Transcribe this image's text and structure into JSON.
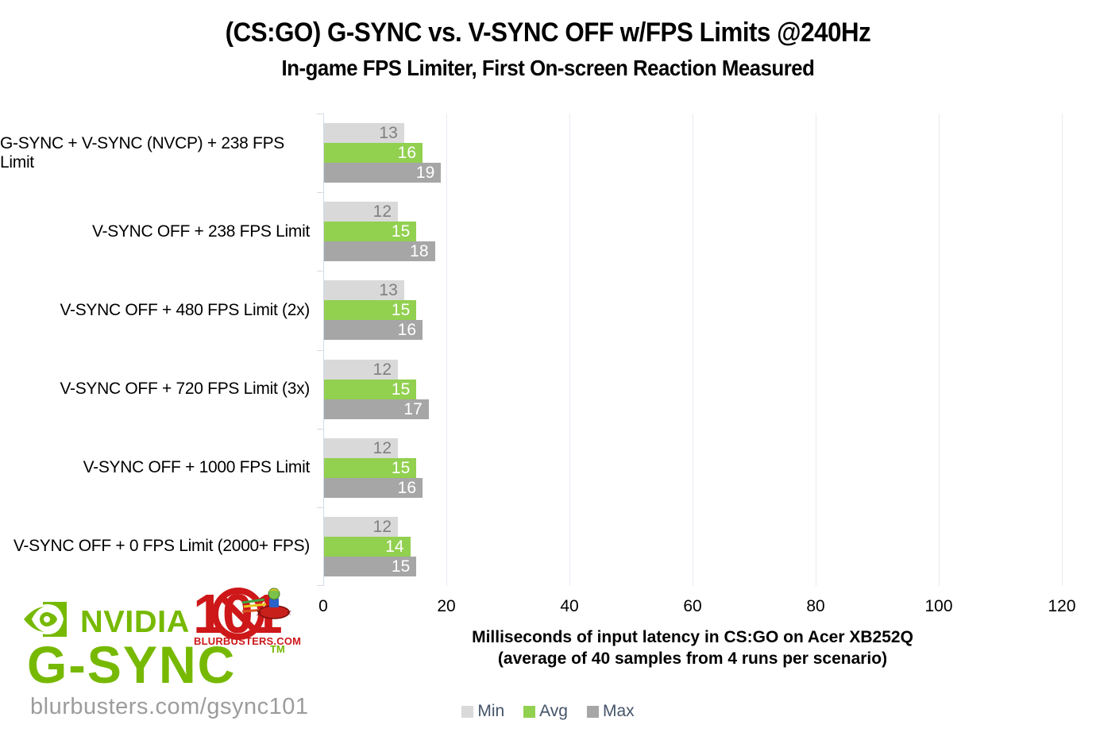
{
  "chart_data": {
    "type": "bar",
    "orientation": "horizontal",
    "title": "(CS:GO) G-SYNC vs. V-SYNC OFF w/FPS Limits @240Hz",
    "subtitle": "In-game FPS Limiter, First On-screen Reaction Measured",
    "categories": [
      "G-SYNC + V-SYNC (NVCP) + 238 FPS Limit",
      "V-SYNC OFF + 238 FPS Limit",
      "V-SYNC OFF + 480 FPS Limit (2x)",
      "V-SYNC OFF + 720 FPS Limit (3x)",
      "V-SYNC OFF + 1000 FPS Limit",
      "V-SYNC OFF + 0 FPS Limit (2000+ FPS)"
    ],
    "series": [
      {
        "name": "Min",
        "color": "#D9D9D9",
        "label_color": "#7F7F7F",
        "values": [
          13,
          12,
          13,
          12,
          12,
          12
        ]
      },
      {
        "name": "Avg",
        "color": "#92D050",
        "label_color": "#FFFFFF",
        "values": [
          16,
          15,
          15,
          15,
          15,
          14
        ]
      },
      {
        "name": "Max",
        "color": "#A6A6A6",
        "label_color": "#FFFFFF",
        "values": [
          19,
          18,
          16,
          17,
          16,
          15
        ]
      }
    ],
    "x_ticks": [
      0,
      20,
      40,
      60,
      80,
      100,
      120
    ],
    "xlim": [
      0,
      120
    ],
    "xlabel_line1": "Milliseconds of input latency in CS:GO on Acer XB252Q",
    "xlabel_line2": "(average of 40 samples from 4 runs per scenario)",
    "legend": [
      "Min",
      "Avg",
      "Max"
    ],
    "legend_position": "bottom",
    "grid": true,
    "gridline_color": "#E7EBF1",
    "axis_line_color": "#D3DBE6"
  },
  "branding": {
    "nvidia_label": "NVIDIA",
    "gsync_label": "G-SYNC",
    "trademark": "TM",
    "blurbusters_101": "101",
    "blurbusters_domain": "BLURBUSTERS.COM",
    "url": "blurbusters.com/gsync101",
    "nvidia_green": "#76B900",
    "blurbusters_red": "#CD1719"
  }
}
